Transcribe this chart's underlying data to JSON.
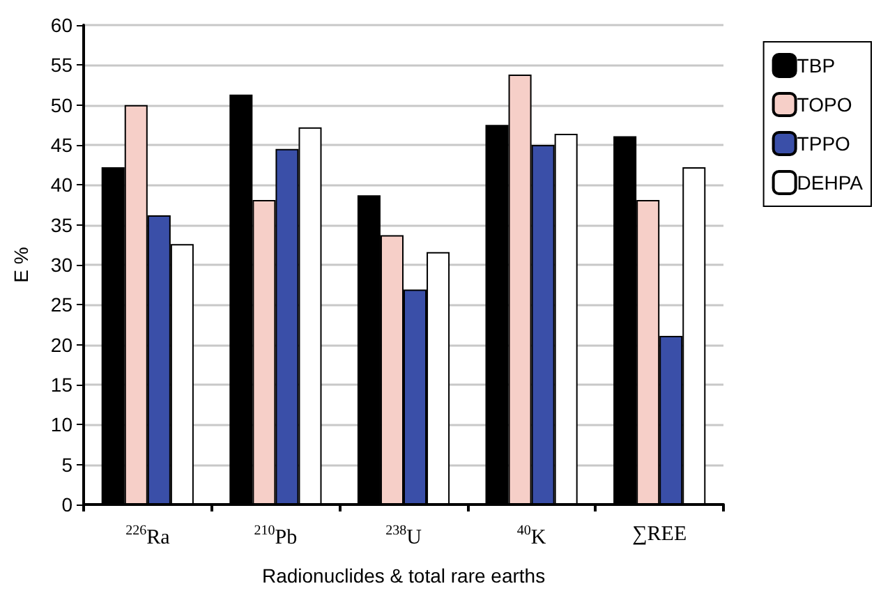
{
  "chart_data": {
    "type": "bar",
    "xlabel": "Radionuclides & total rare earths",
    "ylabel": "E %",
    "categories": [
      "$^{226}$Ra",
      "$^{210}$Pb",
      "$^{238}$U",
      "$^{40}$K",
      "∑REE"
    ],
    "series": [
      {
        "name": "TBP",
        "color": "#000000",
        "values": [
          42.2,
          51.3,
          38.7,
          47.5,
          46.1
        ]
      },
      {
        "name": "TOPO",
        "color": "#f6cfc8",
        "values": [
          50,
          38.1,
          33.7,
          53.8,
          38.1
        ]
      },
      {
        "name": "TPPO",
        "color": "#3a4fa8",
        "values": [
          36.2,
          44.5,
          26.9,
          45,
          21.1
        ]
      },
      {
        "name": "DEHPA",
        "color": "#ffffff",
        "values": [
          32.6,
          47.2,
          31.6,
          46.4,
          42.2
        ]
      }
    ],
    "ylim": [
      0,
      60
    ],
    "yticks": [
      0,
      5,
      10,
      15,
      20,
      25,
      30,
      35,
      40,
      45,
      50,
      55,
      60
    ],
    "grid": "y",
    "legend": "top right"
  }
}
